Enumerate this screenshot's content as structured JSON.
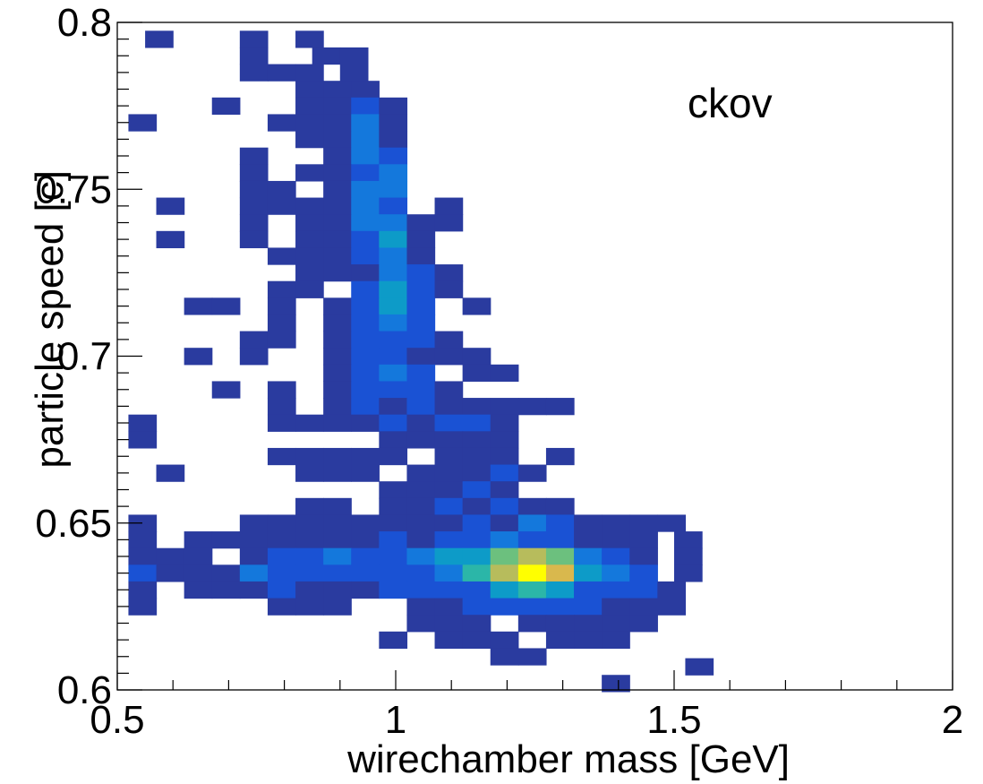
{
  "chart_data": {
    "type": "heatmap",
    "title": "",
    "xlabel": "wirechamber mass [GeV]",
    "ylabel": "particle speed [c]",
    "annotation": "ckov",
    "xlim": [
      0.5,
      2.0
    ],
    "ylim": [
      0.6,
      0.8
    ],
    "x_ticks": [
      "0.5",
      "1",
      "1.5",
      "2"
    ],
    "y_ticks": [
      "0.6",
      "0.65",
      "0.7",
      "0.75",
      "0.8"
    ],
    "x_tick_values": [
      0.5,
      1.0,
      1.5,
      2.0
    ],
    "y_tick_values": [
      0.6,
      0.65,
      0.7,
      0.75,
      0.8
    ],
    "grid": false,
    "colormap": [
      "#2a3b9f",
      "#1a52d4",
      "#1478dc",
      "#0d9bc8",
      "#2bb6a8",
      "#6cc07e",
      "#b7bc5c",
      "#d9b84d",
      "#ffff00"
    ],
    "bin_width": [
      0.05,
      0.005
    ],
    "bins": [
      [
        0.55,
        0.795,
        1
      ],
      [
        0.72,
        0.795,
        1
      ],
      [
        0.82,
        0.795,
        1
      ],
      [
        0.72,
        0.79,
        1
      ],
      [
        0.85,
        0.79,
        1
      ],
      [
        0.9,
        0.79,
        1
      ],
      [
        0.72,
        0.785,
        1
      ],
      [
        0.77,
        0.785,
        1
      ],
      [
        0.82,
        0.785,
        1
      ],
      [
        0.9,
        0.785,
        1
      ],
      [
        0.82,
        0.78,
        1
      ],
      [
        0.87,
        0.78,
        1
      ],
      [
        0.92,
        0.78,
        1
      ],
      [
        0.67,
        0.775,
        1
      ],
      [
        0.82,
        0.775,
        1
      ],
      [
        0.87,
        0.775,
        1
      ],
      [
        0.92,
        0.775,
        2
      ],
      [
        0.97,
        0.775,
        1
      ],
      [
        0.52,
        0.77,
        1
      ],
      [
        0.77,
        0.77,
        1
      ],
      [
        0.82,
        0.77,
        1
      ],
      [
        0.87,
        0.77,
        1
      ],
      [
        0.92,
        0.77,
        3
      ],
      [
        0.97,
        0.77,
        1
      ],
      [
        0.82,
        0.765,
        1
      ],
      [
        0.87,
        0.765,
        1
      ],
      [
        0.92,
        0.765,
        3
      ],
      [
        0.97,
        0.765,
        1
      ],
      [
        0.72,
        0.76,
        1
      ],
      [
        0.87,
        0.76,
        1
      ],
      [
        0.92,
        0.76,
        3
      ],
      [
        0.97,
        0.76,
        2
      ],
      [
        0.72,
        0.755,
        1
      ],
      [
        0.82,
        0.755,
        1
      ],
      [
        0.87,
        0.755,
        1
      ],
      [
        0.92,
        0.755,
        2
      ],
      [
        0.97,
        0.755,
        3
      ],
      [
        0.72,
        0.75,
        1
      ],
      [
        0.77,
        0.75,
        1
      ],
      [
        0.87,
        0.75,
        1
      ],
      [
        0.92,
        0.75,
        3
      ],
      [
        0.97,
        0.75,
        3
      ],
      [
        0.57,
        0.745,
        1
      ],
      [
        0.72,
        0.745,
        1
      ],
      [
        0.77,
        0.745,
        1
      ],
      [
        0.82,
        0.745,
        1
      ],
      [
        0.87,
        0.745,
        1
      ],
      [
        0.92,
        0.745,
        3
      ],
      [
        0.97,
        0.745,
        2
      ],
      [
        1.07,
        0.745,
        1
      ],
      [
        0.72,
        0.74,
        1
      ],
      [
        0.82,
        0.74,
        1
      ],
      [
        0.87,
        0.74,
        1
      ],
      [
        0.92,
        0.74,
        3
      ],
      [
        0.97,
        0.74,
        3
      ],
      [
        1.02,
        0.74,
        1
      ],
      [
        1.07,
        0.74,
        1
      ],
      [
        0.57,
        0.735,
        1
      ],
      [
        0.72,
        0.735,
        1
      ],
      [
        0.82,
        0.735,
        1
      ],
      [
        0.87,
        0.735,
        1
      ],
      [
        0.92,
        0.735,
        2
      ],
      [
        0.97,
        0.735,
        4
      ],
      [
        1.02,
        0.735,
        1
      ],
      [
        0.77,
        0.73,
        1
      ],
      [
        0.82,
        0.73,
        1
      ],
      [
        0.87,
        0.73,
        1
      ],
      [
        0.92,
        0.73,
        2
      ],
      [
        0.97,
        0.73,
        3
      ],
      [
        1.02,
        0.73,
        1
      ],
      [
        0.82,
        0.725,
        1
      ],
      [
        0.87,
        0.725,
        1
      ],
      [
        0.92,
        0.725,
        1
      ],
      [
        0.97,
        0.725,
        3
      ],
      [
        1.02,
        0.725,
        2
      ],
      [
        1.07,
        0.725,
        1
      ],
      [
        0.77,
        0.72,
        1
      ],
      [
        0.82,
        0.72,
        1
      ],
      [
        0.92,
        0.72,
        2
      ],
      [
        0.97,
        0.72,
        4
      ],
      [
        1.02,
        0.72,
        2
      ],
      [
        1.07,
        0.72,
        1
      ],
      [
        0.62,
        0.715,
        1
      ],
      [
        0.67,
        0.715,
        1
      ],
      [
        0.77,
        0.715,
        1
      ],
      [
        0.87,
        0.715,
        1
      ],
      [
        0.92,
        0.715,
        2
      ],
      [
        0.97,
        0.715,
        4
      ],
      [
        1.02,
        0.715,
        2
      ],
      [
        1.12,
        0.715,
        1
      ],
      [
        0.77,
        0.71,
        1
      ],
      [
        0.87,
        0.71,
        1
      ],
      [
        0.92,
        0.71,
        2
      ],
      [
        0.97,
        0.71,
        3
      ],
      [
        1.02,
        0.71,
        2
      ],
      [
        0.72,
        0.705,
        1
      ],
      [
        0.77,
        0.705,
        1
      ],
      [
        0.87,
        0.705,
        1
      ],
      [
        0.92,
        0.705,
        2
      ],
      [
        0.97,
        0.705,
        2
      ],
      [
        1.02,
        0.705,
        2
      ],
      [
        1.07,
        0.705,
        1
      ],
      [
        0.62,
        0.7,
        1
      ],
      [
        0.72,
        0.7,
        1
      ],
      [
        0.87,
        0.7,
        1
      ],
      [
        0.92,
        0.7,
        2
      ],
      [
        0.97,
        0.7,
        2
      ],
      [
        1.02,
        0.7,
        1
      ],
      [
        1.07,
        0.7,
        1
      ],
      [
        1.12,
        0.7,
        1
      ],
      [
        0.87,
        0.695,
        1
      ],
      [
        0.92,
        0.695,
        2
      ],
      [
        0.97,
        0.695,
        3
      ],
      [
        1.02,
        0.695,
        2
      ],
      [
        1.12,
        0.695,
        1
      ],
      [
        1.17,
        0.695,
        1
      ],
      [
        0.67,
        0.69,
        1
      ],
      [
        0.77,
        0.69,
        1
      ],
      [
        0.87,
        0.69,
        1
      ],
      [
        0.92,
        0.69,
        2
      ],
      [
        0.97,
        0.69,
        2
      ],
      [
        1.02,
        0.69,
        2
      ],
      [
        1.07,
        0.69,
        1
      ],
      [
        0.77,
        0.685,
        1
      ],
      [
        0.87,
        0.685,
        1
      ],
      [
        0.92,
        0.685,
        2
      ],
      [
        0.97,
        0.685,
        1
      ],
      [
        1.02,
        0.685,
        2
      ],
      [
        1.07,
        0.685,
        1
      ],
      [
        1.12,
        0.685,
        1
      ],
      [
        1.17,
        0.685,
        1
      ],
      [
        1.22,
        0.685,
        1
      ],
      [
        1.27,
        0.685,
        1
      ],
      [
        0.52,
        0.68,
        1
      ],
      [
        0.77,
        0.68,
        1
      ],
      [
        0.82,
        0.68,
        1
      ],
      [
        0.87,
        0.68,
        1
      ],
      [
        0.92,
        0.68,
        1
      ],
      [
        0.97,
        0.68,
        2
      ],
      [
        1.02,
        0.68,
        1
      ],
      [
        1.07,
        0.68,
        2
      ],
      [
        1.12,
        0.68,
        2
      ],
      [
        1.17,
        0.68,
        1
      ],
      [
        0.52,
        0.675,
        1
      ],
      [
        0.97,
        0.675,
        1
      ],
      [
        1.02,
        0.675,
        1
      ],
      [
        1.07,
        0.675,
        1
      ],
      [
        1.12,
        0.675,
        1
      ],
      [
        1.17,
        0.675,
        1
      ],
      [
        0.77,
        0.67,
        1
      ],
      [
        0.82,
        0.67,
        1
      ],
      [
        0.87,
        0.67,
        1
      ],
      [
        0.92,
        0.67,
        1
      ],
      [
        0.97,
        0.67,
        1
      ],
      [
        1.07,
        0.67,
        1
      ],
      [
        1.12,
        0.67,
        1
      ],
      [
        1.17,
        0.67,
        1
      ],
      [
        1.27,
        0.67,
        1
      ],
      [
        0.57,
        0.665,
        1
      ],
      [
        0.82,
        0.665,
        1
      ],
      [
        0.87,
        0.665,
        1
      ],
      [
        0.92,
        0.665,
        1
      ],
      [
        1.02,
        0.665,
        1
      ],
      [
        1.07,
        0.665,
        1
      ],
      [
        1.12,
        0.665,
        1
      ],
      [
        1.17,
        0.665,
        2
      ],
      [
        1.22,
        0.665,
        1
      ],
      [
        0.97,
        0.66,
        1
      ],
      [
        1.02,
        0.66,
        1
      ],
      [
        1.07,
        0.66,
        1
      ],
      [
        1.12,
        0.66,
        2
      ],
      [
        1.17,
        0.66,
        1
      ],
      [
        0.82,
        0.655,
        1
      ],
      [
        0.87,
        0.655,
        1
      ],
      [
        0.97,
        0.655,
        1
      ],
      [
        1.02,
        0.655,
        1
      ],
      [
        1.07,
        0.655,
        2
      ],
      [
        1.12,
        0.655,
        1
      ],
      [
        1.17,
        0.655,
        2
      ],
      [
        1.22,
        0.655,
        1
      ],
      [
        1.27,
        0.655,
        1
      ],
      [
        0.52,
        0.65,
        1
      ],
      [
        0.72,
        0.65,
        1
      ],
      [
        0.77,
        0.65,
        1
      ],
      [
        0.82,
        0.65,
        1
      ],
      [
        0.87,
        0.65,
        1
      ],
      [
        0.92,
        0.65,
        1
      ],
      [
        0.97,
        0.65,
        1
      ],
      [
        1.02,
        0.65,
        1
      ],
      [
        1.07,
        0.65,
        1
      ],
      [
        1.12,
        0.65,
        2
      ],
      [
        1.17,
        0.65,
        1
      ],
      [
        1.22,
        0.65,
        3
      ],
      [
        1.27,
        0.65,
        2
      ],
      [
        1.32,
        0.65,
        1
      ],
      [
        1.37,
        0.65,
        1
      ],
      [
        1.42,
        0.65,
        1
      ],
      [
        1.47,
        0.65,
        1
      ],
      [
        0.52,
        0.645,
        1
      ],
      [
        0.62,
        0.645,
        1
      ],
      [
        0.67,
        0.645,
        1
      ],
      [
        0.72,
        0.645,
        1
      ],
      [
        0.77,
        0.645,
        1
      ],
      [
        0.82,
        0.645,
        1
      ],
      [
        0.87,
        0.645,
        1
      ],
      [
        0.92,
        0.645,
        1
      ],
      [
        0.97,
        0.645,
        2
      ],
      [
        1.02,
        0.645,
        1
      ],
      [
        1.07,
        0.645,
        2
      ],
      [
        1.12,
        0.645,
        2
      ],
      [
        1.17,
        0.645,
        3
      ],
      [
        1.22,
        0.645,
        2
      ],
      [
        1.27,
        0.645,
        2
      ],
      [
        1.32,
        0.645,
        1
      ],
      [
        1.37,
        0.645,
        1
      ],
      [
        1.42,
        0.645,
        1
      ],
      [
        1.5,
        0.645,
        1
      ],
      [
        0.52,
        0.64,
        1
      ],
      [
        0.57,
        0.64,
        1
      ],
      [
        0.62,
        0.64,
        1
      ],
      [
        0.72,
        0.64,
        1
      ],
      [
        0.77,
        0.64,
        2
      ],
      [
        0.82,
        0.64,
        2
      ],
      [
        0.87,
        0.64,
        3
      ],
      [
        0.92,
        0.64,
        2
      ],
      [
        0.97,
        0.64,
        2
      ],
      [
        1.02,
        0.64,
        3
      ],
      [
        1.07,
        0.64,
        4
      ],
      [
        1.12,
        0.64,
        4
      ],
      [
        1.17,
        0.64,
        6
      ],
      [
        1.22,
        0.64,
        7
      ],
      [
        1.27,
        0.64,
        6
      ],
      [
        1.32,
        0.64,
        3
      ],
      [
        1.37,
        0.64,
        2
      ],
      [
        1.42,
        0.64,
        1
      ],
      [
        1.5,
        0.64,
        1
      ],
      [
        0.52,
        0.635,
        2
      ],
      [
        0.57,
        0.635,
        1
      ],
      [
        0.62,
        0.635,
        1
      ],
      [
        0.67,
        0.635,
        1
      ],
      [
        0.72,
        0.635,
        3
      ],
      [
        0.77,
        0.635,
        2
      ],
      [
        0.82,
        0.635,
        2
      ],
      [
        0.87,
        0.635,
        2
      ],
      [
        0.92,
        0.635,
        2
      ],
      [
        0.97,
        0.635,
        2
      ],
      [
        1.02,
        0.635,
        2
      ],
      [
        1.07,
        0.635,
        3
      ],
      [
        1.12,
        0.635,
        5
      ],
      [
        1.17,
        0.635,
        7
      ],
      [
        1.22,
        0.635,
        9
      ],
      [
        1.27,
        0.635,
        8
      ],
      [
        1.32,
        0.635,
        4
      ],
      [
        1.37,
        0.635,
        3
      ],
      [
        1.42,
        0.635,
        2
      ],
      [
        1.5,
        0.635,
        1
      ],
      [
        0.52,
        0.63,
        1
      ],
      [
        0.62,
        0.63,
        1
      ],
      [
        0.67,
        0.63,
        1
      ],
      [
        0.72,
        0.63,
        1
      ],
      [
        0.77,
        0.63,
        2
      ],
      [
        0.82,
        0.63,
        1
      ],
      [
        0.87,
        0.63,
        1
      ],
      [
        0.92,
        0.63,
        1
      ],
      [
        0.97,
        0.63,
        2
      ],
      [
        1.02,
        0.63,
        2
      ],
      [
        1.07,
        0.63,
        2
      ],
      [
        1.12,
        0.63,
        2
      ],
      [
        1.17,
        0.63,
        4
      ],
      [
        1.22,
        0.63,
        5
      ],
      [
        1.27,
        0.63,
        4
      ],
      [
        1.32,
        0.63,
        2
      ],
      [
        1.37,
        0.63,
        2
      ],
      [
        1.42,
        0.63,
        2
      ],
      [
        1.47,
        0.63,
        1
      ],
      [
        0.52,
        0.625,
        1
      ],
      [
        0.77,
        0.625,
        1
      ],
      [
        0.82,
        0.625,
        1
      ],
      [
        0.87,
        0.625,
        1
      ],
      [
        1.02,
        0.625,
        1
      ],
      [
        1.07,
        0.625,
        1
      ],
      [
        1.12,
        0.625,
        2
      ],
      [
        1.17,
        0.625,
        2
      ],
      [
        1.22,
        0.625,
        2
      ],
      [
        1.27,
        0.625,
        2
      ],
      [
        1.32,
        0.625,
        2
      ],
      [
        1.37,
        0.625,
        1
      ],
      [
        1.42,
        0.625,
        1
      ],
      [
        1.47,
        0.625,
        1
      ],
      [
        1.02,
        0.62,
        1
      ],
      [
        1.07,
        0.62,
        1
      ],
      [
        1.12,
        0.62,
        1
      ],
      [
        1.22,
        0.62,
        1
      ],
      [
        1.27,
        0.62,
        1
      ],
      [
        1.32,
        0.62,
        1
      ],
      [
        1.37,
        0.62,
        1
      ],
      [
        1.42,
        0.62,
        1
      ],
      [
        0.97,
        0.615,
        1
      ],
      [
        1.07,
        0.615,
        1
      ],
      [
        1.12,
        0.615,
        1
      ],
      [
        1.17,
        0.615,
        1
      ],
      [
        1.27,
        0.615,
        1
      ],
      [
        1.32,
        0.615,
        1
      ],
      [
        1.37,
        0.615,
        1
      ],
      [
        1.17,
        0.61,
        1
      ],
      [
        1.22,
        0.61,
        1
      ],
      [
        1.52,
        0.607,
        1
      ],
      [
        1.37,
        0.602,
        1
      ]
    ]
  }
}
